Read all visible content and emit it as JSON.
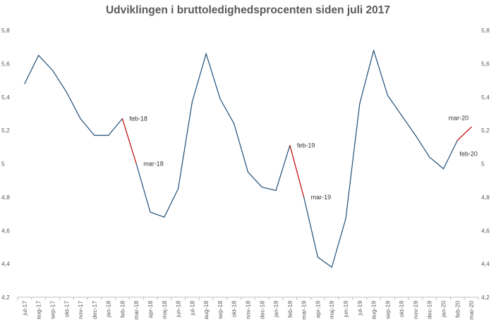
{
  "chart_data": {
    "type": "line",
    "title": "Udviklingen i bruttoledighedsprocenten siden juli 2017",
    "xlabel": "",
    "ylabel": "",
    "ylim": [
      4.2,
      5.8
    ],
    "yticks": [
      4.2,
      4.4,
      4.6,
      4.8,
      5,
      5.2,
      5.4,
      5.6,
      5.8
    ],
    "ytick_labels": [
      "4,2",
      "4,4",
      "4,6",
      "4,8",
      "5",
      "5,2",
      "5,4",
      "5,6",
      "5,8"
    ],
    "secondary_axis": true,
    "grid": false,
    "categories": [
      "jul-17",
      "aug-17",
      "sep-17",
      "okt-17",
      "nov-17",
      "dec-17",
      "jan-18",
      "feb-18",
      "mar-18",
      "apr-18",
      "maj-18",
      "jun-18",
      "jul-18",
      "aug-18",
      "sep-18",
      "okt-18",
      "nov-18",
      "dec-18",
      "jan-19",
      "feb-19",
      "mar-19",
      "apr-19",
      "maj-19",
      "jun-19",
      "jul-19",
      "aug-19",
      "sep-19",
      "okt-19",
      "nov-19",
      "dec-19",
      "jan-20",
      "feb-20",
      "mar-20"
    ],
    "series": [
      {
        "color": "#1f4e79",
        "values": [
          5.48,
          5.65,
          5.56,
          5.43,
          5.27,
          5.17,
          5.17,
          5.27,
          5.0,
          4.71,
          4.68,
          4.85,
          5.37,
          5.66,
          5.39,
          5.24,
          4.95,
          4.86,
          4.84,
          5.11,
          4.8,
          4.44,
          4.38,
          4.67,
          5.36,
          5.68,
          5.41,
          5.29,
          5.17,
          5.04,
          4.97,
          5.14,
          5.22
        ]
      }
    ],
    "highlight_segments": [
      {
        "from": "feb-18",
        "to": "mar-18",
        "color": "#c00000"
      },
      {
        "from": "feb-19",
        "to": "mar-19",
        "color": "#c00000"
      },
      {
        "from": "feb-20",
        "to": "mar-20",
        "color": "#c00000"
      }
    ],
    "annotations": [
      {
        "text": "feb-18",
        "at": "feb-18",
        "placement": "right"
      },
      {
        "text": "mar-18",
        "at": "mar-18",
        "placement": "right"
      },
      {
        "text": "feb-19",
        "at": "feb-19",
        "placement": "right"
      },
      {
        "text": "mar-19",
        "at": "mar-19",
        "placement": "right"
      },
      {
        "text": "feb-20",
        "at": "feb-20",
        "placement": "below-right"
      },
      {
        "text": "mar-20",
        "at": "mar-20",
        "placement": "above-left"
      }
    ]
  }
}
